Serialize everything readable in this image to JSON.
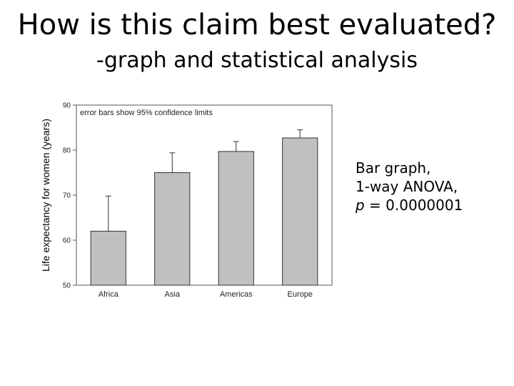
{
  "slide": {
    "title": "How is this claim best evaluated?",
    "subtitle": "-graph and statistical analysis",
    "note": {
      "line1": "Bar graph,",
      "line2": "1-way ANOVA,",
      "p_symbol": "p",
      "p_rest": " = 0.0000001"
    }
  },
  "chart_data": {
    "type": "bar",
    "categories": [
      "Africa",
      "Asia",
      "Americas",
      "Europe"
    ],
    "values": [
      62,
      75,
      79.7,
      82.7
    ],
    "error_upper": [
      69.8,
      79.4,
      81.9,
      84.5
    ],
    "ylabel": "Life expectancy for women (years)",
    "ylim": [
      50,
      90
    ],
    "yticks": [
      50,
      60,
      70,
      80,
      90
    ],
    "annotation": "error bars show 95% confidence limits",
    "grid": false,
    "colors": {
      "bar_fill": "#c0c0c0",
      "bar_stroke": "#333333",
      "axis": "#555555"
    }
  }
}
